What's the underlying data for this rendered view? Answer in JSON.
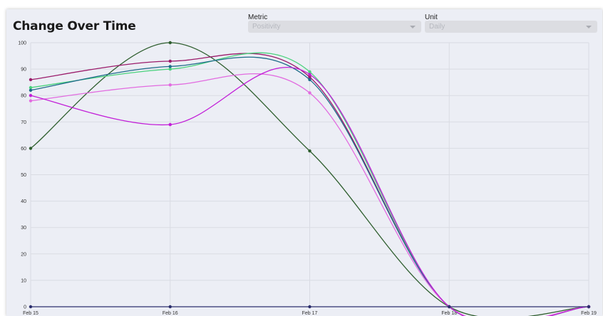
{
  "widget": {
    "title": "Change Over Time",
    "metric": {
      "label": "Metric",
      "value": "Positivity"
    },
    "unit": {
      "label": "Unit",
      "value": "Daily"
    }
  },
  "chart_data": {
    "type": "line",
    "title": "",
    "xlabel": "",
    "ylabel": "",
    "x": [
      "Feb 15",
      "Feb 16",
      "Feb 17",
      "Feb 18",
      "Feb 19"
    ],
    "ylim": [
      0,
      100
    ],
    "yticks": [
      0,
      10,
      20,
      30,
      40,
      50,
      60,
      70,
      80,
      90,
      100
    ],
    "grid": true,
    "legend": "none",
    "series": [
      {
        "color": "#2e5e2e",
        "values": [
          60,
          100,
          59,
          0,
          0
        ]
      },
      {
        "color": "#9b1c6b",
        "values": [
          86,
          93,
          87,
          0,
          0
        ]
      },
      {
        "color": "#49d27c",
        "values": [
          83,
          90,
          89,
          0,
          0
        ]
      },
      {
        "color": "#1f6b8a",
        "values": [
          82,
          91,
          86,
          0,
          0
        ]
      },
      {
        "color": "#e26be0",
        "values": [
          78,
          84,
          81,
          0,
          0
        ]
      },
      {
        "color": "#c21fd8",
        "values": [
          80,
          69,
          88,
          0,
          0
        ]
      },
      {
        "color": "#2c2f6e",
        "values": [
          0,
          0,
          0,
          0,
          0
        ]
      }
    ]
  }
}
